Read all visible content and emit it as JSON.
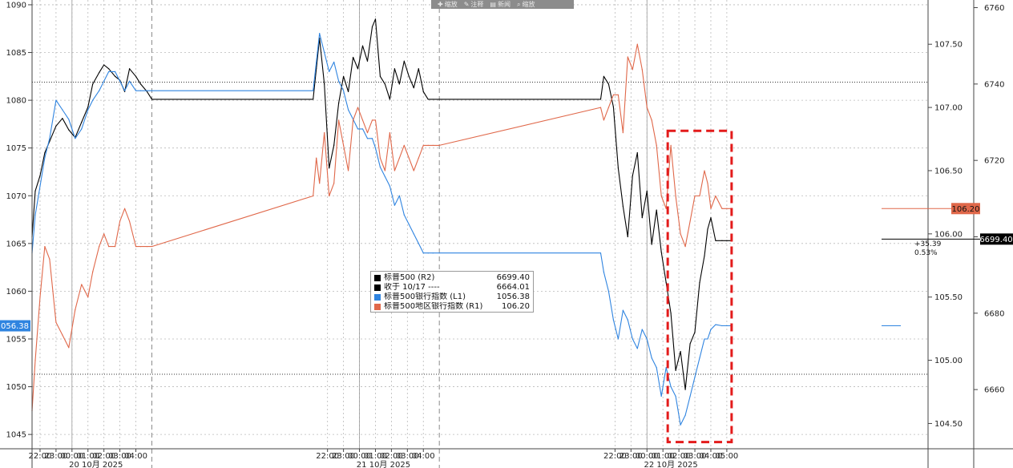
{
  "chart_data": {
    "type": "line",
    "title": "",
    "xlabel": "",
    "ylabel": "",
    "grid": true,
    "legend_position": "center",
    "axes": {
      "left": {
        "ylim": [
          1043.5,
          1090.5
        ],
        "ticks": [
          1045,
          1050,
          1055,
          1060,
          1065,
          1070,
          1075,
          1080,
          1085,
          1090
        ],
        "labels": [
          "1045",
          "1050",
          "1055",
          "1060",
          "1065",
          "1070",
          "1075",
          "1080",
          "1085",
          "1090"
        ]
      },
      "right1": {
        "ylim": [
          104.3,
          107.85
        ],
        "ticks": [
          104.5,
          105.0,
          105.5,
          106.0,
          106.5,
          107.0,
          107.5
        ],
        "labels": [
          "104.50",
          "105.00",
          "105.50",
          "106.00",
          "106.50",
          "107.00",
          "107.50"
        ]
      },
      "right2": {
        "ylim": [
          6644.5,
          6762.0
        ],
        "ticks": [
          6660,
          6680,
          6700,
          6720,
          6740,
          6760
        ],
        "labels": [
          "6660",
          "6680",
          "6700",
          "6720",
          "6740",
          "6760"
        ]
      }
    },
    "x_axis": {
      "range_hours": [
        21.5,
        77.6
      ],
      "ticks": [
        {
          "h": 22,
          "label": "22:00"
        },
        {
          "h": 23,
          "label": "23:00"
        },
        {
          "h": 24,
          "label": "00:00"
        },
        {
          "h": 25,
          "label": "01:00"
        },
        {
          "h": 26,
          "label": "02:00"
        },
        {
          "h": 27,
          "label": "03:00"
        },
        {
          "h": 28,
          "label": "04:00"
        },
        {
          "h": 40,
          "label": "22:00"
        },
        {
          "h": 41,
          "label": "23:00"
        },
        {
          "h": 42,
          "label": "00:00"
        },
        {
          "h": 43,
          "label": "01:00"
        },
        {
          "h": 44,
          "label": "02:00"
        },
        {
          "h": 45,
          "label": "03:00"
        },
        {
          "h": 46,
          "label": "04:00"
        },
        {
          "h": 58,
          "label": "22:00"
        },
        {
          "h": 59,
          "label": "23:00"
        },
        {
          "h": 60,
          "label": "00:00"
        },
        {
          "h": 61,
          "label": "01:00"
        },
        {
          "h": 62,
          "label": "02:00"
        },
        {
          "h": 63,
          "label": "03:00"
        },
        {
          "h": 64,
          "label": "04:00"
        },
        {
          "h": 65,
          "label": "05:00"
        }
      ],
      "session_breaks": [
        29.0,
        47.0
      ],
      "dates": [
        {
          "h": 25.5,
          "label": "20 10月 2025"
        },
        {
          "h": 43.5,
          "label": "21 10月 2025"
        },
        {
          "h": 61.5,
          "label": "22 10月 2025"
        }
      ]
    },
    "reference_lines": [
      {
        "axis": "right2",
        "value": 6664.01,
        "style": "dotted"
      },
      {
        "axis": "right2",
        "value": 6740.5,
        "style": "dotted"
      }
    ],
    "highlight_box": {
      "h_range": [
        61.3,
        65.3
      ],
      "axis": "left",
      "y_range": [
        1044.2,
        1076.8
      ],
      "color": "#e31b1b"
    },
    "series": [
      {
        "name": "标普500 (R2)",
        "axis": "right2",
        "color": "#000000",
        "last": "6699.40",
        "x": [
          21.5,
          21.7,
          22.0,
          22.3,
          22.6,
          23.0,
          23.4,
          23.8,
          24.2,
          24.6,
          25.0,
          25.3,
          25.7,
          26.0,
          26.3,
          26.7,
          27.0,
          27.3,
          27.6,
          28.0,
          28.3,
          28.7,
          29.0,
          39.1,
          39.3,
          39.5,
          39.8,
          40.1,
          40.4,
          40.7,
          41.0,
          41.3,
          41.6,
          41.9,
          42.2,
          42.5,
          42.8,
          43.0,
          43.3,
          43.6,
          43.9,
          44.2,
          44.5,
          44.8,
          45.1,
          45.4,
          45.7,
          46.0,
          46.3,
          46.6,
          47.0,
          57.1,
          57.3,
          57.6,
          57.9,
          58.2,
          58.5,
          58.8,
          59.1,
          59.4,
          59.7,
          60.0,
          60.3,
          60.6,
          60.9,
          61.2,
          61.5,
          61.8,
          62.1,
          62.4,
          62.7,
          63.0,
          63.3,
          63.6,
          63.8,
          64.0,
          64.3,
          64.7,
          65.0,
          65.3
        ],
        "y": [
          6700,
          6712,
          6716,
          6722,
          6725,
          6729,
          6731,
          6728,
          6726,
          6730,
          6734,
          6740,
          6743,
          6745,
          6744,
          6742,
          6741,
          6738,
          6744,
          6742,
          6740,
          6738,
          6736,
          6736,
          6744,
          6752,
          6740,
          6718,
          6724,
          6735,
          6742,
          6738,
          6747,
          6744,
          6750,
          6746,
          6755,
          6757,
          6742,
          6740,
          6736,
          6744,
          6740,
          6746,
          6742,
          6739,
          6744,
          6738,
          6736,
          6736,
          6736,
          6736,
          6742,
          6740,
          6734,
          6718,
          6708,
          6700,
          6716,
          6722,
          6705,
          6712,
          6698,
          6707,
          6696,
          6688,
          6680,
          6665,
          6670,
          6660,
          6672,
          6675,
          6688,
          6695,
          6702,
          6705,
          6699,
          6699,
          6699,
          6699
        ]
      },
      {
        "name": "收于 10/17 ----",
        "axis": "right2",
        "color": "#000000",
        "last": "6664.01",
        "reference_value": 6664.01,
        "x": [],
        "y": []
      },
      {
        "name": "标普500银行指数 (L1)",
        "axis": "left",
        "color": "#2f84e0",
        "last": "1056.38",
        "x": [
          21.5,
          21.7,
          22.0,
          22.3,
          22.6,
          23.0,
          23.4,
          23.8,
          24.2,
          24.6,
          25.0,
          25.3,
          25.7,
          26.0,
          26.3,
          26.7,
          27.0,
          27.3,
          27.6,
          28.0,
          28.3,
          28.7,
          29.0,
          39.1,
          39.3,
          39.5,
          39.8,
          40.1,
          40.4,
          40.7,
          41.0,
          41.3,
          41.6,
          41.9,
          42.2,
          42.5,
          42.8,
          43.0,
          43.3,
          43.6,
          43.9,
          44.2,
          44.5,
          44.8,
          45.1,
          45.4,
          45.7,
          46.0,
          46.3,
          46.6,
          47.0,
          57.1,
          57.3,
          57.6,
          57.9,
          58.2,
          58.5,
          58.8,
          59.1,
          59.4,
          59.7,
          60.0,
          60.3,
          60.6,
          60.9,
          61.2,
          61.5,
          61.8,
          62.1,
          62.4,
          62.7,
          63.0,
          63.3,
          63.6,
          63.8,
          64.0,
          64.3,
          64.7,
          65.0,
          65.3
        ],
        "y": [
          1064,
          1068,
          1071,
          1074,
          1076,
          1080,
          1079,
          1078,
          1076,
          1077,
          1079,
          1080,
          1081,
          1082,
          1083,
          1083,
          1082,
          1081,
          1082,
          1081,
          1081,
          1081,
          1081,
          1081,
          1084,
          1087,
          1085,
          1083,
          1084,
          1082,
          1081,
          1079,
          1078,
          1077,
          1077,
          1076,
          1076,
          1075,
          1073,
          1072,
          1071,
          1069,
          1070,
          1068,
          1067,
          1066,
          1065,
          1064,
          1064,
          1064,
          1064,
          1064,
          1062,
          1060,
          1057,
          1055,
          1058,
          1057,
          1055,
          1054,
          1056,
          1055,
          1053,
          1052,
          1049,
          1052,
          1050,
          1049,
          1046,
          1047,
          1049,
          1051,
          1053,
          1055,
          1055,
          1056,
          1056.5,
          1056.38,
          1056.38,
          1056.38
        ]
      },
      {
        "name": "标普500地区银行指数 (R1)",
        "axis": "right1",
        "color": "#e0684a",
        "last": "106.20",
        "x": [
          21.5,
          21.7,
          22.0,
          22.3,
          22.6,
          23.0,
          23.4,
          23.8,
          24.2,
          24.6,
          25.0,
          25.3,
          25.7,
          26.0,
          26.3,
          26.7,
          27.0,
          27.3,
          27.6,
          28.0,
          28.3,
          28.7,
          29.0,
          39.1,
          39.3,
          39.5,
          39.8,
          40.1,
          40.4,
          40.7,
          41.0,
          41.3,
          41.6,
          41.9,
          42.2,
          42.5,
          42.8,
          43.0,
          43.3,
          43.6,
          43.9,
          44.2,
          44.5,
          44.8,
          45.1,
          45.4,
          45.7,
          46.0,
          46.3,
          46.6,
          47.0,
          57.1,
          57.3,
          57.6,
          57.9,
          58.2,
          58.5,
          58.8,
          59.1,
          59.4,
          59.7,
          60.0,
          60.3,
          60.6,
          60.9,
          61.2,
          61.5,
          61.8,
          62.1,
          62.4,
          62.7,
          63.0,
          63.3,
          63.6,
          63.8,
          64.0,
          64.3,
          64.7,
          65.0,
          65.3
        ],
        "y": [
          104.6,
          105.0,
          105.5,
          105.9,
          105.8,
          105.3,
          105.2,
          105.1,
          105.4,
          105.6,
          105.5,
          105.7,
          105.9,
          106.0,
          105.9,
          105.9,
          106.1,
          106.2,
          106.1,
          105.9,
          105.9,
          105.9,
          105.9,
          106.3,
          106.6,
          106.4,
          106.8,
          106.3,
          106.4,
          106.9,
          106.7,
          106.5,
          106.9,
          107.0,
          106.9,
          106.8,
          106.9,
          106.9,
          106.6,
          106.5,
          106.8,
          106.5,
          106.6,
          106.7,
          106.6,
          106.5,
          106.6,
          106.7,
          106.7,
          106.7,
          106.7,
          107.0,
          106.9,
          107.0,
          107.1,
          107.1,
          106.8,
          107.4,
          107.3,
          107.5,
          107.3,
          107.0,
          106.9,
          106.7,
          106.3,
          106.2,
          106.7,
          106.3,
          106.0,
          105.9,
          106.1,
          106.3,
          106.3,
          106.5,
          106.4,
          106.2,
          106.3,
          106.2,
          106.2,
          106.2
        ]
      }
    ]
  },
  "legend": {
    "items": [
      {
        "name": "标普500 (R2)",
        "value": "6699.40",
        "color": "#000000"
      },
      {
        "name": "收于 10/17 ----",
        "value": "6664.01",
        "color": "#000000"
      },
      {
        "name": "标普500银行指数 (L1)",
        "value": "1056.38",
        "color": "#2f84e0"
      },
      {
        "name": "标普500地区银行指数 (R1)",
        "value": "106.20",
        "color": "#e0684a"
      }
    ]
  },
  "last_tags": {
    "left": "1056.38",
    "right1": "106.20",
    "right2": "6699.40"
  },
  "change_annotation": {
    "abs": "+35.39",
    "pct": "0.53%"
  },
  "toolbar": {
    "items": [
      {
        "icon": "plus-icon",
        "glyph": "✚",
        "label": "缩放"
      },
      {
        "icon": "pencil-icon",
        "glyph": "✎",
        "label": "注释"
      },
      {
        "icon": "news-icon",
        "glyph": "▤",
        "label": "新闻"
      },
      {
        "icon": "magnifier-icon",
        "glyph": "⌕",
        "label": "缩放"
      }
    ]
  }
}
